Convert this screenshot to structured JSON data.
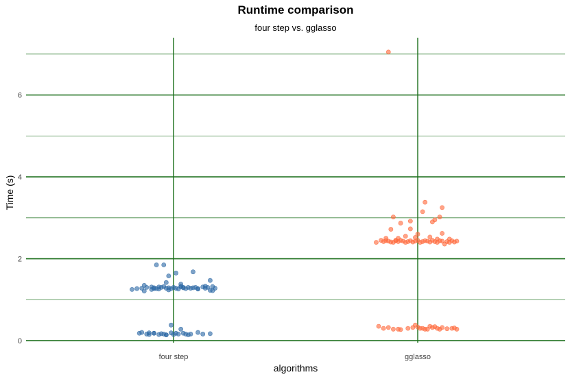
{
  "chart_data": {
    "type": "scatter",
    "title": "Runtime comparison",
    "subtitle": "four step vs. gglasso",
    "xlabel": "algorithms",
    "ylabel": "Time (s)",
    "categories": [
      "four step",
      "gglasso"
    ],
    "ylim": [
      -0.05,
      7.4
    ],
    "y_ticks": [
      0,
      2,
      4,
      6
    ],
    "grid": "on",
    "colors": {
      "grid": "#1a6e1a",
      "four step": "#2f6aa6",
      "gglasso": "#ff6a3d"
    },
    "series": [
      {
        "category": "four step",
        "x": [
          0.83,
          0.87,
          0.89,
          0.91,
          0.92,
          0.93,
          0.94,
          0.95,
          0.96,
          0.97,
          0.98,
          0.99,
          1.0,
          1.01,
          1.02,
          1.03,
          1.04,
          1.05,
          1.06,
          1.07,
          1.08,
          1.1,
          1.12,
          1.13,
          1.14,
          1.15,
          1.16,
          1.17,
          0.85,
          0.88,
          0.91,
          0.94,
          1.03,
          1.09,
          1.13,
          0.88,
          0.92,
          0.98,
          1.04,
          1.1,
          0.93,
          0.96,
          0.98,
          1.01,
          1.03,
          1.08,
          1.15,
          0.97,
          1.16,
          0.86,
          0.89,
          0.9,
          0.92,
          0.94,
          0.95,
          0.97,
          0.99,
          1.0,
          1.02,
          1.04,
          1.06,
          1.12,
          1.15,
          0.9,
          0.97,
          1.01,
          0.87,
          1.1,
          0.96,
          1.05,
          0.99,
          0.92,
          1.03,
          1.07
        ],
        "y": [
          1.25,
          1.28,
          1.3,
          1.31,
          1.29,
          1.27,
          1.26,
          1.3,
          1.32,
          1.28,
          1.29,
          1.27,
          1.3,
          1.28,
          1.26,
          1.32,
          1.29,
          1.27,
          1.3,
          1.28,
          1.29,
          1.26,
          1.31,
          1.28,
          1.3,
          1.23,
          1.32,
          1.28,
          1.27,
          1.35,
          1.25,
          1.31,
          1.38,
          1.3,
          1.33,
          1.21,
          1.27,
          1.24,
          1.3,
          1.27,
          1.85,
          1.85,
          1.58,
          1.65,
          1.32,
          1.68,
          1.47,
          1.42,
          1.22,
          0.18,
          0.16,
          0.19,
          0.18,
          0.15,
          0.17,
          0.14,
          0.19,
          0.15,
          0.16,
          0.18,
          0.14,
          0.16,
          0.17,
          0.15,
          0.14,
          0.18,
          0.2,
          0.2,
          0.16,
          0.16,
          0.38,
          0.18,
          0.28,
          0.16
        ]
      },
      {
        "category": "gglasso",
        "x": [
          1.83,
          1.85,
          1.86,
          1.87,
          1.88,
          1.89,
          1.9,
          1.91,
          1.92,
          1.93,
          1.94,
          1.95,
          1.96,
          1.97,
          1.98,
          1.99,
          2.0,
          2.01,
          2.02,
          2.03,
          2.04,
          2.05,
          2.06,
          2.07,
          2.08,
          2.09,
          2.1,
          2.11,
          2.12,
          2.13,
          2.14,
          2.15,
          2.16,
          1.87,
          1.92,
          1.95,
          1.99,
          2.05,
          2.08,
          1.93,
          2.06,
          2.07,
          2.02,
          1.89,
          2.1,
          2.0,
          1.97,
          1.9,
          2.13,
          1.97,
          2.1,
          1.91,
          2.09,
          2.03,
          1.84,
          1.86,
          1.88,
          1.9,
          1.92,
          1.93,
          1.96,
          1.98,
          2.0,
          2.02,
          2.03,
          2.04,
          2.06,
          2.07,
          2.08,
          2.09,
          2.1,
          2.12,
          2.14,
          2.15,
          2.16,
          1.99,
          2.05,
          2.01
        ],
        "y": [
          2.4,
          2.45,
          2.42,
          2.44,
          2.43,
          2.41,
          2.4,
          2.44,
          2.42,
          2.45,
          2.43,
          2.4,
          2.42,
          2.44,
          2.41,
          2.43,
          2.45,
          2.4,
          2.42,
          2.44,
          2.43,
          2.41,
          2.45,
          2.42,
          2.4,
          2.44,
          2.43,
          2.36,
          2.42,
          2.4,
          2.44,
          2.41,
          2.43,
          2.5,
          2.5,
          2.55,
          2.52,
          2.53,
          2.48,
          2.87,
          2.9,
          2.95,
          3.15,
          2.72,
          2.62,
          2.6,
          2.73,
          3.02,
          2.48,
          2.92,
          3.25,
          2.45,
          3.02,
          3.38,
          0.35,
          0.3,
          0.32,
          0.28,
          0.28,
          0.27,
          0.3,
          0.32,
          0.33,
          0.3,
          0.28,
          0.28,
          0.32,
          0.34,
          0.3,
          0.28,
          0.32,
          0.29,
          0.3,
          0.31,
          0.28,
          0.38,
          0.35,
          0.3
        ]
      },
      {
        "category": "gglasso",
        "x": [
          1.88
        ],
        "y": [
          7.05
        ]
      }
    ]
  }
}
